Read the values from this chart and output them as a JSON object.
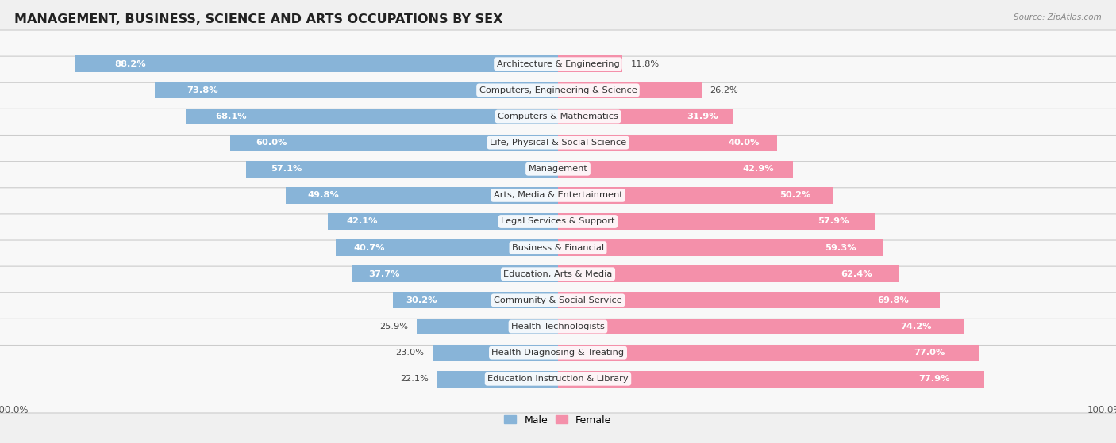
{
  "title": "MANAGEMENT, BUSINESS, SCIENCE AND ARTS OCCUPATIONS BY SEX",
  "source": "Source: ZipAtlas.com",
  "categories": [
    "Architecture & Engineering",
    "Computers, Engineering & Science",
    "Computers & Mathematics",
    "Life, Physical & Social Science",
    "Management",
    "Arts, Media & Entertainment",
    "Legal Services & Support",
    "Business & Financial",
    "Education, Arts & Media",
    "Community & Social Service",
    "Health Technologists",
    "Health Diagnosing & Treating",
    "Education Instruction & Library"
  ],
  "male_values": [
    88.2,
    73.8,
    68.1,
    60.0,
    57.1,
    49.8,
    42.1,
    40.7,
    37.7,
    30.2,
    25.9,
    23.0,
    22.1
  ],
  "female_values": [
    11.8,
    26.2,
    31.9,
    40.0,
    42.9,
    50.2,
    57.9,
    59.3,
    62.4,
    69.8,
    74.2,
    77.0,
    77.9
  ],
  "male_color": "#88b4d8",
  "female_color": "#f490aa",
  "background_color": "#f0f0f0",
  "row_color_light": "#f8f8f8",
  "row_color_dark": "#ebebeb",
  "title_fontsize": 11.5,
  "label_fontsize": 8.2,
  "tick_fontsize": 8.5,
  "bar_height": 0.62,
  "figsize": [
    14.06,
    5.59
  ]
}
